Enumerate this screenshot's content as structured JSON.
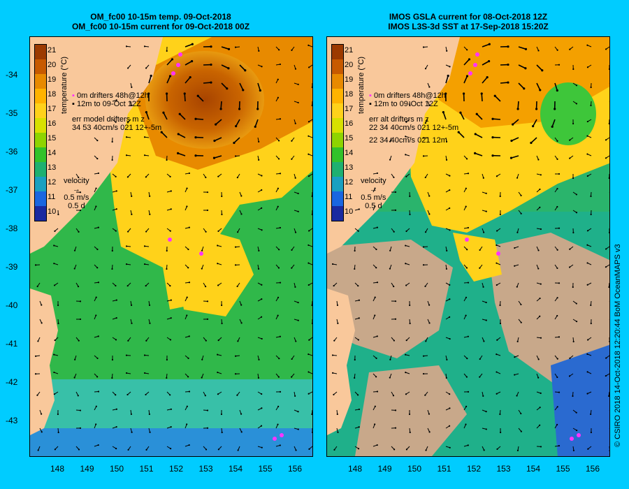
{
  "panels": [
    {
      "title1": "OM_fc00 10-15m temp. 09-Oct-2018",
      "title2": "OM_fc00 10-15m current for 09-Oct-2018 00Z",
      "legend_drifters": "drifters 48h@12h",
      "legend_to": "to 09-Oct 12Z",
      "legend_err1": "err model drifters m z",
      "legend_err2": "34 53 40cm/s 021 12+-5m",
      "legend_err3": "",
      "velocity_label": "velocity",
      "velocity_speed": "0.5 m/s",
      "velocity_time": "0.5 d"
    },
    {
      "title1": "IMOS GSLA current for 08-Oct-2018 12Z",
      "title2": "IMOS L3S-3d SST at 17-Sep-2018 15:20Z",
      "legend_drifters": "drifters 48h@12h",
      "legend_to": "to 09-Oct 12Z",
      "legend_err1": "err alt drifters m z",
      "legend_err2": "22 34 40cm/s 021 12+-5m",
      "legend_err3": "22 34 40cm/s 021 12m",
      "velocity_label": "velocity",
      "velocity_speed": "0.5 m/s",
      "velocity_time": "0.5 d"
    }
  ],
  "colorbar": {
    "unit_label": "temperature (°C)",
    "ticks": [
      "21",
      "20",
      "19",
      "18",
      "17",
      "16",
      "15",
      "14",
      "13",
      "12",
      "11",
      "10"
    ],
    "colors": [
      "#9c3a00",
      "#c75a00",
      "#e88a00",
      "#ffb300",
      "#ffd21a",
      "#d8e000",
      "#8fd400",
      "#33c22a",
      "#1fb070",
      "#1aa0c0",
      "#1a66e0",
      "#1a2aa0"
    ],
    "depth_labels": [
      "0m",
      "12m"
    ]
  },
  "axes": {
    "lat_ticks": [
      "-34",
      "-35",
      "-36",
      "-37",
      "-38",
      "-39",
      "-40",
      "-41",
      "-42",
      "-43"
    ],
    "lon_ticks": [
      "148",
      "149",
      "150",
      "151",
      "152",
      "153",
      "154",
      "155",
      "156"
    ]
  },
  "credit": "© CSIRO 2018   14-Oct-2018 12:20:44 BoM OceanMAPS v3",
  "colors": {
    "background": "#00ccff",
    "land": "#f9c89b",
    "no_data": "#c8a88a",
    "drifter": "#ff33ff"
  }
}
